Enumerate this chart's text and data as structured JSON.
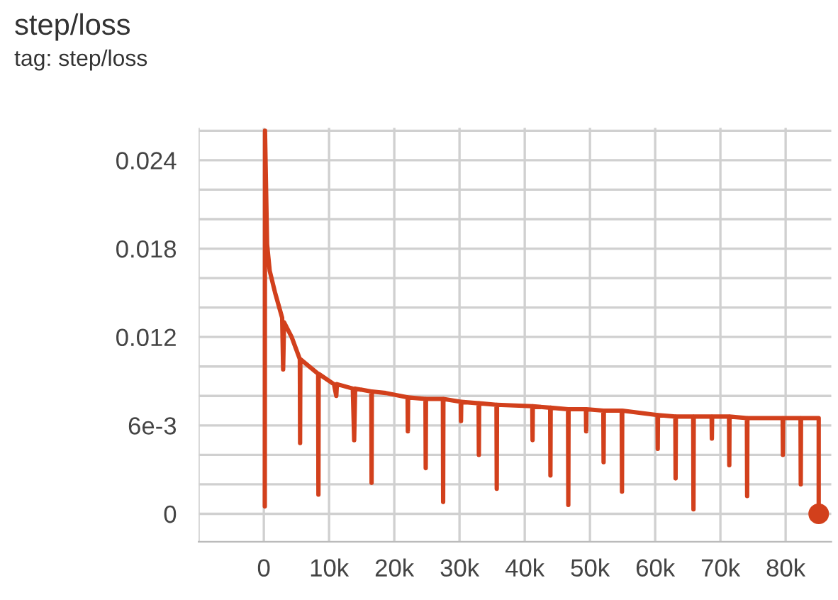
{
  "chart_data": {
    "type": "line",
    "title": "step/loss",
    "subtitle": "tag: step/loss",
    "xlim": [
      -10000,
      87000
    ],
    "xticks": [
      {
        "value": -10000,
        "label": null
      },
      {
        "value": 0,
        "label": "0"
      },
      {
        "value": 10000,
        "label": "10k"
      },
      {
        "value": 20000,
        "label": "20k"
      },
      {
        "value": 30000,
        "label": "30k"
      },
      {
        "value": 40000,
        "label": "40k"
      },
      {
        "value": 50000,
        "label": "50k"
      },
      {
        "value": 60000,
        "label": "60k"
      },
      {
        "value": 70000,
        "label": "70k"
      },
      {
        "value": 80000,
        "label": "80k"
      }
    ],
    "ylim": [
      -0.0019,
      0.0262
    ],
    "yticks": [
      {
        "value": 0,
        "label": "0"
      },
      {
        "value": 0.002,
        "label": null
      },
      {
        "value": 0.004,
        "label": null
      },
      {
        "value": 0.006,
        "label": "6e-3"
      },
      {
        "value": 0.008,
        "label": null
      },
      {
        "value": 0.01,
        "label": null
      },
      {
        "value": 0.012,
        "label": "0.012"
      },
      {
        "value": 0.014,
        "label": null
      },
      {
        "value": 0.016,
        "label": null
      },
      {
        "value": 0.018,
        "label": "0.018"
      },
      {
        "value": 0.02,
        "label": null
      },
      {
        "value": 0.022,
        "label": null
      },
      {
        "value": 0.024,
        "label": "0.024"
      },
      {
        "value": 0.026,
        "label": null
      }
    ],
    "grid": true,
    "legend": false,
    "series": [
      {
        "color": "#d2401c",
        "marker": "none",
        "x": [
          150,
          180,
          500,
          900,
          1730,
          2810,
          2960,
          3100,
          4260,
          5520,
          5560,
          5600,
          8330,
          8370,
          8410,
          10750,
          11110,
          11200,
          13640,
          13850,
          14000,
          16480,
          16520,
          16560,
          18690,
          22040,
          22080,
          22120,
          24780,
          24820,
          24860,
          27450,
          27490,
          27530,
          30190,
          30230,
          30270,
          32930,
          32970,
          33010,
          35670,
          35710,
          35750,
          41160,
          41200,
          41240,
          43900,
          43940,
          43980,
          46640,
          46680,
          46720,
          49380,
          49420,
          49460,
          52050,
          52090,
          52130,
          54870,
          54910,
          54950,
          60350,
          60390,
          60430,
          63090,
          63130,
          63170,
          65830,
          65870,
          65910,
          68650,
          68690,
          68730,
          71320,
          71360,
          71400,
          74060,
          74100,
          74140,
          76410,
          79540,
          79580,
          79620,
          82280,
          82320,
          82360,
          85070,
          85070
        ],
        "values": [
          0.0005,
          0.026,
          0.0183,
          0.0165,
          0.015,
          0.0133,
          0.0098,
          0.013,
          0.012,
          0.0105,
          0.0048,
          0.0105,
          0.0095,
          0.0013,
          0.0095,
          0.0088,
          0.008,
          0.0088,
          0.0085,
          0.005,
          0.0085,
          0.0083,
          0.0021,
          0.0083,
          0.0082,
          0.0079,
          0.0056,
          0.0079,
          0.0078,
          0.0031,
          0.0078,
          0.0078,
          0.0008,
          0.0078,
          0.0076,
          0.0063,
          0.0076,
          0.0075,
          0.004,
          0.0075,
          0.0074,
          0.0017,
          0.0074,
          0.0073,
          0.005,
          0.0073,
          0.0072,
          0.0026,
          0.0072,
          0.0071,
          0.0006,
          0.0071,
          0.0071,
          0.0056,
          0.0071,
          0.007,
          0.0035,
          0.007,
          0.007,
          0.0015,
          0.007,
          0.0067,
          0.0044,
          0.0067,
          0.0066,
          0.0024,
          0.0066,
          0.0066,
          0.0003,
          0.0066,
          0.0066,
          0.0051,
          0.0066,
          0.0066,
          0.0033,
          0.0066,
          0.0065,
          0.0012,
          0.0065,
          0.0065,
          0.0065,
          0.004,
          0.0065,
          0.0065,
          0.002,
          0.0065,
          0.0065,
          0
        ]
      },
      {
        "color": "#d2401c",
        "type": "scatter",
        "marker": "circle",
        "x": [
          85070
        ],
        "values": [
          0
        ]
      }
    ]
  }
}
